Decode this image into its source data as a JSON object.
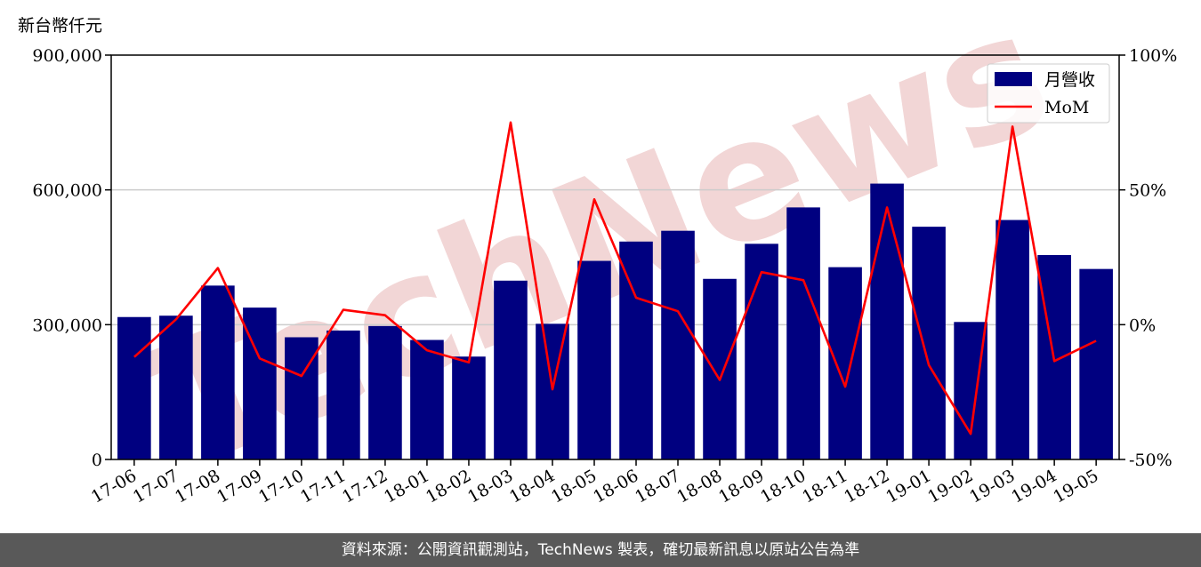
{
  "unit_label": "新台幣仟元",
  "footer_text": "資料來源：公開資訊觀測站，TechNews 製表，確切最新訊息以原站公告為準",
  "watermark_text": "TechNews",
  "colors": {
    "bar": "#000080",
    "line": "#ff0000",
    "grid": "#cccccc",
    "footer_bg": "#595959",
    "watermark": "#f2d6d6"
  },
  "chart_data": {
    "type": "bar",
    "title": "",
    "grid": true,
    "legend_placement": "top-right",
    "categories": [
      "17-06",
      "17-07",
      "17-08",
      "17-09",
      "17-10",
      "17-11",
      "17-12",
      "18-01",
      "18-02",
      "18-03",
      "18-04",
      "18-05",
      "18-06",
      "18-07",
      "18-08",
      "18-09",
      "18-10",
      "18-11",
      "18-12",
      "19-01",
      "19-02",
      "19-03",
      "19-04",
      "19-05"
    ],
    "series": [
      {
        "name": "月營收",
        "type": "bar",
        "axis": "left",
        "values": [
          317000,
          320000,
          387000,
          338000,
          272000,
          287000,
          297000,
          266000,
          229000,
          398000,
          302000,
          442000,
          485000,
          509000,
          402000,
          480000,
          561000,
          428000,
          614000,
          518000,
          306000,
          533000,
          455000,
          424000
        ]
      },
      {
        "name": "MoM",
        "type": "line",
        "axis": "right",
        "values": [
          -12,
          2,
          21,
          -12.5,
          -19,
          5.5,
          3.5,
          -9.5,
          -14,
          75,
          -24,
          46.5,
          10,
          5,
          -20.5,
          19.5,
          16.5,
          -23,
          43.5,
          -15,
          -40.5,
          73.5,
          -13.5,
          -6
        ]
      }
    ],
    "y_left": {
      "ylim": [
        0,
        900000
      ],
      "ticks": [
        0,
        300000,
        600000,
        900000
      ],
      "tick_labels": [
        "0",
        "300,000",
        "600,000",
        "900,000"
      ]
    },
    "y_right": {
      "ylim": [
        -50,
        100
      ],
      "ticks": [
        -50,
        0,
        50,
        100
      ],
      "tick_labels": [
        "-50%",
        "0%",
        "50%",
        "100%"
      ]
    }
  }
}
